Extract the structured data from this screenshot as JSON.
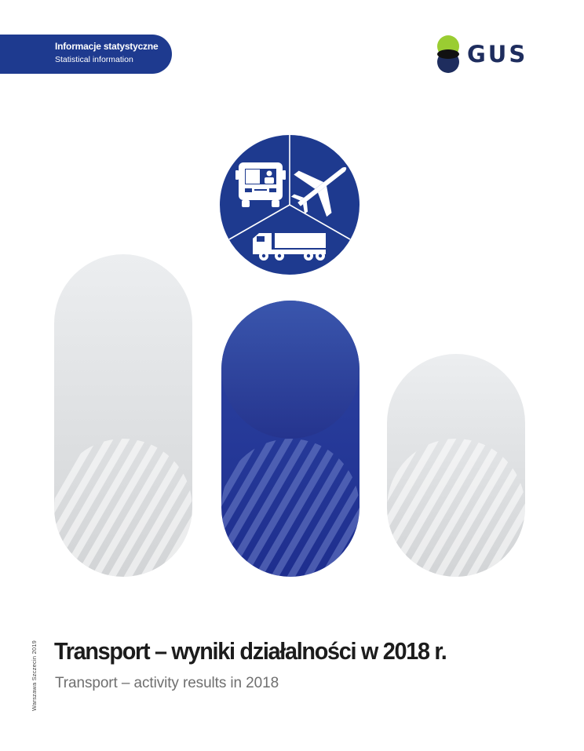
{
  "header": {
    "series_pl": "Informacje statystyczne",
    "series_en": "Statistical information",
    "logo_text": "GUS"
  },
  "cover": {
    "publisher_line": "Warszawa  Szczecin 2019",
    "title_pl": "Transport – wyniki działalności w 2018 r.",
    "title_en": "Transport – activity results in 2018"
  },
  "icons": [
    "bus-icon",
    "airplane-icon",
    "truck-icon"
  ],
  "colors": {
    "brand_blue": "#1e3a8f",
    "logo_green": "#9acd32",
    "logo_navy": "#1e2d5e",
    "pill_gray": "#e4e6e8"
  }
}
